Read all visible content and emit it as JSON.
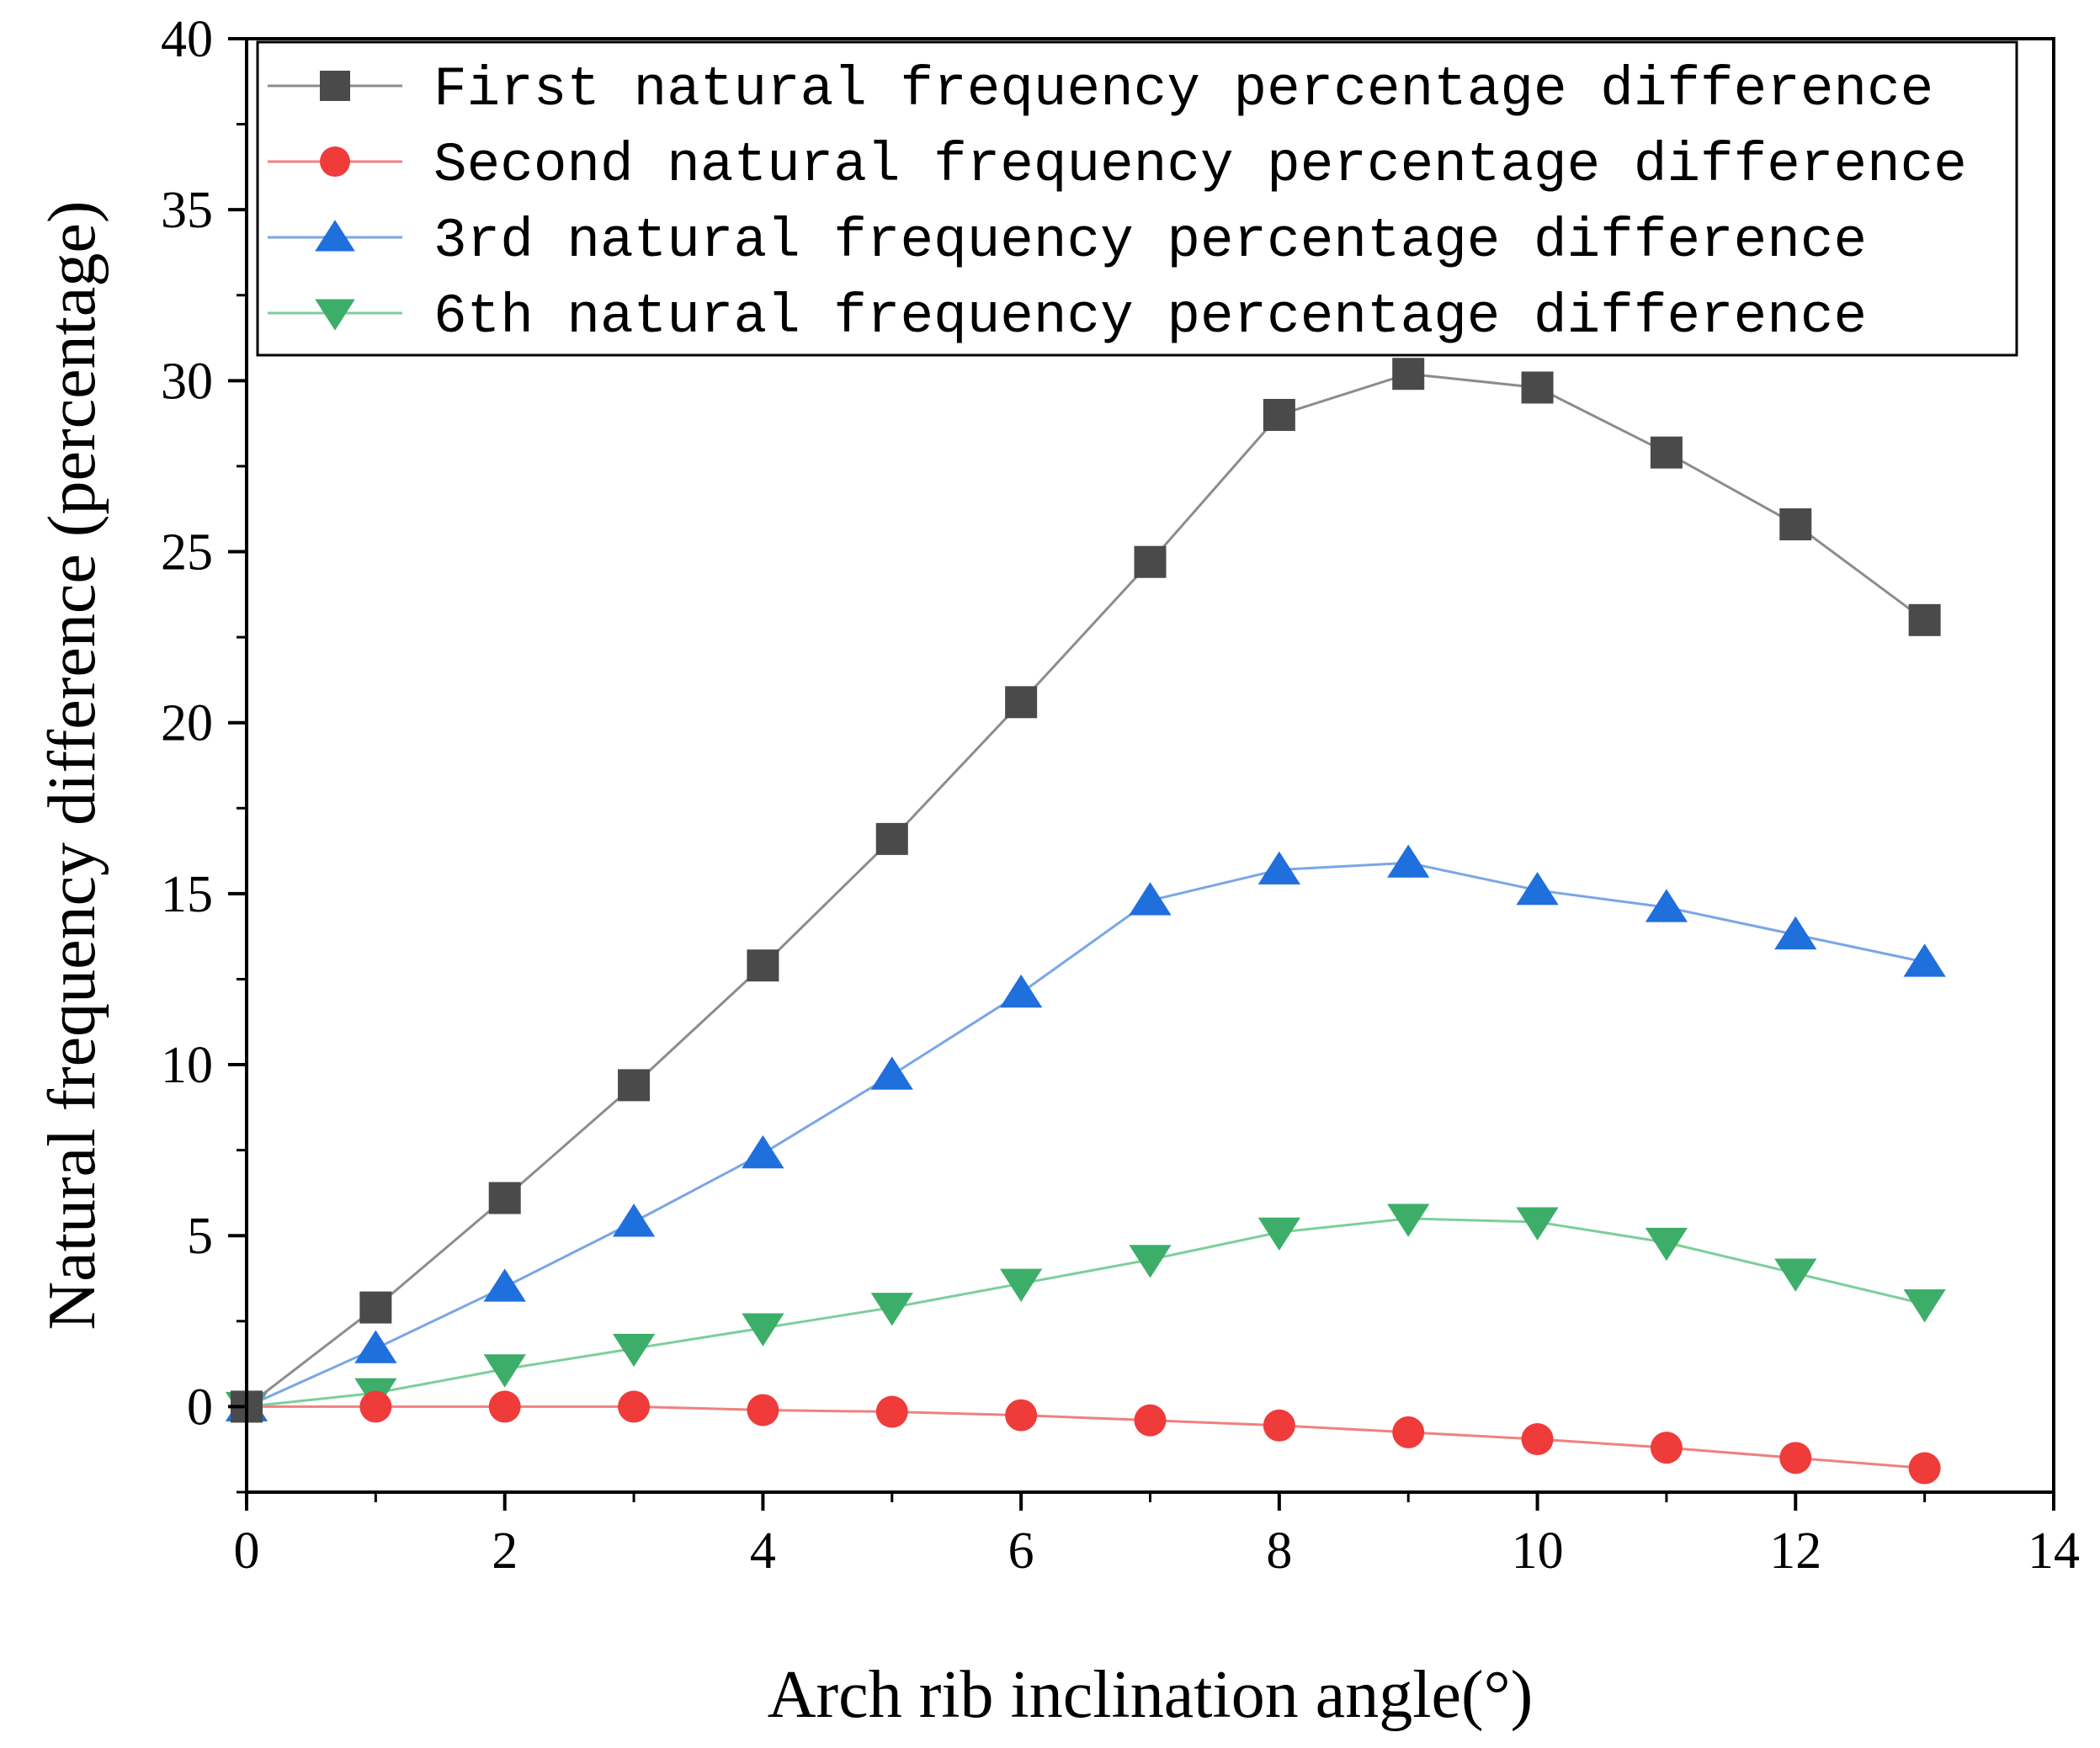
{
  "chart_data": {
    "type": "line",
    "title": "",
    "xlabel": "Arch rib inclination angle(°)",
    "ylabel": "Natural frequency difference (percentage)",
    "xlim": [
      0,
      14
    ],
    "ylim": [
      -2.5,
      40
    ],
    "xticks": [
      0,
      2,
      4,
      6,
      8,
      10,
      12,
      14
    ],
    "yticks": [
      0,
      5,
      10,
      15,
      20,
      25,
      30,
      35,
      40
    ],
    "grid": false,
    "legend_position": "top",
    "x": [
      0,
      1,
      2,
      3,
      4,
      5,
      6,
      7,
      8,
      9,
      10,
      11,
      12,
      13
    ],
    "series": [
      {
        "name": "First natural frequency percentage difference",
        "marker": "square",
        "color": "#4a4a4a",
        "line_color": "#8c8c8c",
        "values": [
          0,
          2.9,
          6.1,
          9.4,
          12.9,
          16.6,
          20.6,
          24.7,
          29.0,
          30.2,
          29.8,
          27.9,
          25.8,
          23.0
        ]
      },
      {
        "name": "Second natural frequency percentage difference",
        "marker": "circle",
        "color": "#f03b3b",
        "line_color": "#f08080",
        "values": [
          0,
          0.0,
          0.0,
          0.0,
          -0.1,
          -0.15,
          -0.25,
          -0.4,
          -0.55,
          -0.75,
          -0.95,
          -1.2,
          -1.5,
          -1.8
        ]
      },
      {
        "name": "3rd natural frequency percentage difference",
        "marker": "triangle-up",
        "color": "#1f6fdc",
        "line_color": "#7aa6e6",
        "values": [
          0,
          1.7,
          3.5,
          5.4,
          7.4,
          9.7,
          12.1,
          14.8,
          15.7,
          15.9,
          15.1,
          14.6,
          13.8,
          13.0
        ]
      },
      {
        "name": "6th natural frequency percentage difference",
        "marker": "triangle-down",
        "color": "#3dae6a",
        "line_color": "#7ccf99",
        "values": [
          0,
          0.4,
          1.1,
          1.7,
          2.3,
          2.9,
          3.6,
          4.3,
          5.1,
          5.5,
          5.4,
          4.8,
          3.9,
          3.0
        ]
      }
    ]
  }
}
